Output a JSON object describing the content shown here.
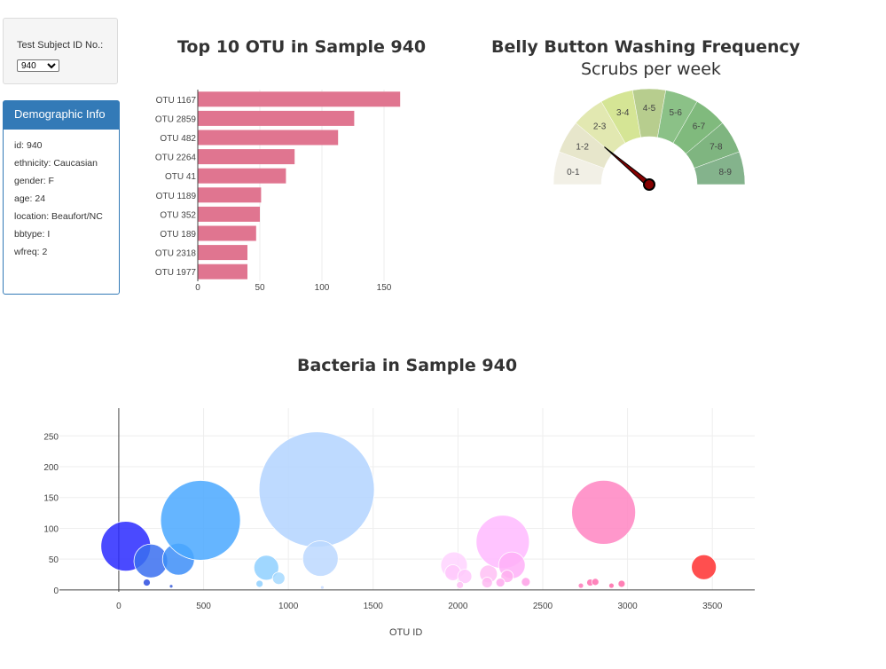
{
  "selector": {
    "label": "Test Subject ID No.:",
    "selected": "940"
  },
  "demographic": {
    "heading": "Demographic Info",
    "items": [
      "id: 940",
      "ethnicity: Caucasian",
      "gender: F",
      "age: 24",
      "location: Beaufort/NC",
      "bbtype: I",
      "wfreq: 2"
    ]
  },
  "chart_data": [
    {
      "type": "bar",
      "orientation": "horizontal",
      "title": "Top 10 OTU in Sample 940",
      "categories": [
        "OTU 1167",
        "OTU 2859",
        "OTU 482",
        "OTU 2264",
        "OTU 41",
        "OTU 1189",
        "OTU 352",
        "OTU 189",
        "OTU 2318",
        "OTU 1977"
      ],
      "values": [
        163,
        126,
        113,
        78,
        71,
        51,
        50,
        47,
        40,
        40
      ],
      "xlim": [
        0,
        170
      ],
      "xticks": [
        0,
        50,
        100,
        150
      ],
      "color": "#e07590"
    },
    {
      "type": "gauge",
      "title": "Belly Button Washing Frequency",
      "subtitle": "Scrubs per week",
      "segments": [
        "0-1",
        "1-2",
        "2-3",
        "3-4",
        "4-5",
        "5-6",
        "6-7",
        "7-8",
        "8-9"
      ],
      "segment_colors": [
        "#f2f0e6",
        "#e7e6cb",
        "#e2e8b1",
        "#d5e595",
        "#b7cd8e",
        "#8bc187",
        "#80ba7d",
        "#7fb580",
        "#84b38c"
      ],
      "value": 2,
      "range": [
        0,
        9
      ]
    },
    {
      "type": "scatter",
      "subtype": "bubble",
      "title": "Bacteria in Sample 940",
      "xlabel": "OTU ID",
      "ylabel": "",
      "xlim": [
        -350,
        3750
      ],
      "ylim": [
        -3,
        295
      ],
      "xticks": [
        0,
        500,
        1000,
        1500,
        2000,
        2500,
        3000,
        3500
      ],
      "yticks": [
        0,
        50,
        100,
        150,
        200,
        250
      ],
      "points": [
        {
          "x": 41,
          "y": 71,
          "r": 28,
          "color": "#2a2aff"
        },
        {
          "x": 189,
          "y": 47,
          "r": 19,
          "color": "#3a6ff0"
        },
        {
          "x": 165,
          "y": 12,
          "r": 4,
          "color": "#2d4ee0"
        },
        {
          "x": 309,
          "y": 6,
          "r": 2,
          "color": "#3b5ed8"
        },
        {
          "x": 352,
          "y": 50,
          "r": 18,
          "color": "#3d8ef8"
        },
        {
          "x": 482,
          "y": 113,
          "r": 45,
          "color": "#4aa8ff"
        },
        {
          "x": 830,
          "y": 10,
          "r": 4,
          "color": "#8fd0ff"
        },
        {
          "x": 870,
          "y": 36,
          "r": 14,
          "color": "#8fd0ff"
        },
        {
          "x": 943,
          "y": 19,
          "r": 7,
          "color": "#a6d9ff"
        },
        {
          "x": 1167,
          "y": 163,
          "r": 65,
          "color": "#b3d3ff"
        },
        {
          "x": 1189,
          "y": 51,
          "r": 20,
          "color": "#bcd8ff"
        },
        {
          "x": 1200,
          "y": 4,
          "r": 2,
          "color": "#c8dcff"
        },
        {
          "x": 1977,
          "y": 40,
          "r": 15,
          "color": "#ffd4ff"
        },
        {
          "x": 1970,
          "y": 28,
          "r": 9,
          "color": "#ffc8fb"
        },
        {
          "x": 2040,
          "y": 22,
          "r": 8,
          "color": "#ffc8fb"
        },
        {
          "x": 2012,
          "y": 8,
          "r": 4,
          "color": "#ffc0f5"
        },
        {
          "x": 2180,
          "y": 26,
          "r": 10,
          "color": "#ffc0f5"
        },
        {
          "x": 2172,
          "y": 12,
          "r": 6,
          "color": "#ffbaf2"
        },
        {
          "x": 2264,
          "y": 78,
          "r": 30,
          "color": "#ffbaff"
        },
        {
          "x": 2318,
          "y": 40,
          "r": 15,
          "color": "#ffb0f8"
        },
        {
          "x": 2290,
          "y": 22,
          "r": 7,
          "color": "#ffb0f0"
        },
        {
          "x": 2250,
          "y": 12,
          "r": 5,
          "color": "#ffaaee"
        },
        {
          "x": 2400,
          "y": 13,
          "r": 5,
          "color": "#ffa0e8"
        },
        {
          "x": 2859,
          "y": 126,
          "r": 36,
          "color": "#ff85c2"
        },
        {
          "x": 2725,
          "y": 7,
          "r": 3,
          "color": "#ff78b8"
        },
        {
          "x": 2780,
          "y": 12,
          "r": 4,
          "color": "#ff70b0"
        },
        {
          "x": 2810,
          "y": 13,
          "r": 4,
          "color": "#ff70b0"
        },
        {
          "x": 2905,
          "y": 7,
          "r": 3,
          "color": "#ff6aa8"
        },
        {
          "x": 2965,
          "y": 10,
          "r": 4,
          "color": "#ff6aa8"
        },
        {
          "x": 3450,
          "y": 37,
          "r": 14,
          "color": "#ff3030"
        }
      ]
    }
  ]
}
